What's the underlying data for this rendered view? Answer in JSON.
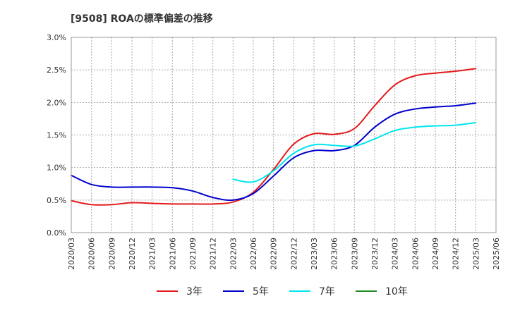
{
  "chart_data": {
    "type": "line",
    "title": "[9508]  ROAの標準偏差の推移",
    "xlabel": "",
    "ylabel": "",
    "ylim": [
      0,
      3.0
    ],
    "y_ticks": [
      "0.0%",
      "0.5%",
      "1.0%",
      "1.5%",
      "2.0%",
      "2.5%",
      "3.0%"
    ],
    "categories": [
      "2020/03",
      "2020/06",
      "2020/09",
      "2020/12",
      "2021/03",
      "2021/06",
      "2021/09",
      "2021/12",
      "2022/03",
      "2022/06",
      "2022/09",
      "2022/12",
      "2023/03",
      "2023/06",
      "2023/09",
      "2023/12",
      "2024/03",
      "2024/06",
      "2024/09",
      "2024/12",
      "2025/03",
      "2025/06"
    ],
    "grid": true,
    "legend_position": "bottom",
    "series": [
      {
        "name": "3年",
        "color": "#e31a1c",
        "values": [
          0.49,
          0.43,
          0.43,
          0.46,
          0.45,
          0.44,
          0.44,
          0.44,
          0.47,
          0.62,
          0.97,
          1.36,
          1.52,
          1.51,
          1.6,
          1.95,
          2.27,
          2.41,
          2.45,
          2.48,
          2.52,
          null
        ]
      },
      {
        "name": "5年",
        "color": "#0000cc",
        "values": [
          0.88,
          0.74,
          0.7,
          0.7,
          0.7,
          0.69,
          0.64,
          0.54,
          0.5,
          0.6,
          0.87,
          1.15,
          1.26,
          1.26,
          1.34,
          1.62,
          1.82,
          1.9,
          1.93,
          1.95,
          1.99,
          null
        ]
      },
      {
        "name": "7年",
        "color": "#00e5ee",
        "values": [
          null,
          null,
          null,
          null,
          null,
          null,
          null,
          null,
          0.82,
          0.78,
          0.95,
          1.22,
          1.35,
          1.34,
          1.33,
          1.44,
          1.57,
          1.62,
          1.64,
          1.65,
          1.69,
          null
        ]
      },
      {
        "name": "10年",
        "color": "#228b22",
        "values": [
          null,
          null,
          null,
          null,
          null,
          null,
          null,
          null,
          null,
          null,
          null,
          null,
          null,
          null,
          null,
          null,
          null,
          null,
          null,
          null,
          null,
          null
        ]
      }
    ]
  }
}
